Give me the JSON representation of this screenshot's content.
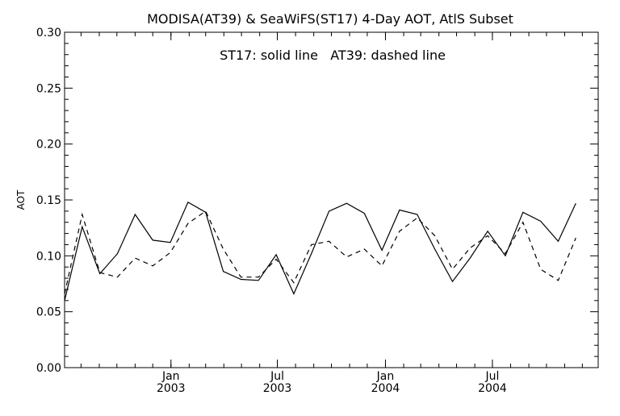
{
  "colors": {
    "background": "#ffffff",
    "foreground": "#000000"
  },
  "chart_data": {
    "type": "line",
    "title": "MODISA(AT39) & SeaWiFS(ST17) 4-Day AOT, AtlS Subset",
    "annotation": "ST17: solid line   AT39: dashed line",
    "xlabel": "",
    "ylabel": "AOT",
    "xlim": [
      "2002-07-04",
      "2004-12-28"
    ],
    "ylim": [
      0.0,
      0.3
    ],
    "grid": false,
    "legend": "none",
    "x_ticks": [
      {
        "month": "Jan",
        "year": "2003",
        "date": "2003-01-01"
      },
      {
        "month": "Jul",
        "year": "2003",
        "date": "2003-07-01"
      },
      {
        "month": "Jan",
        "year": "2004",
        "date": "2004-01-01"
      },
      {
        "month": "Jul",
        "year": "2004",
        "date": "2004-07-01"
      }
    ],
    "y_ticks": [
      "0.00",
      "0.05",
      "0.10",
      "0.15",
      "0.20",
      "0.25",
      "0.30"
    ],
    "series": [
      {
        "style": "solid",
        "points": [
          [
            "2002-07-04",
            0.06
          ],
          [
            "2002-08-03",
            0.126
          ],
          [
            "2002-09-02",
            0.084
          ],
          [
            "2002-10-02",
            0.102
          ],
          [
            "2002-11-01",
            0.137
          ],
          [
            "2002-12-01",
            0.114
          ],
          [
            "2002-12-31",
            0.112
          ],
          [
            "2003-01-30",
            0.148
          ],
          [
            "2003-03-01",
            0.139
          ],
          [
            "2003-03-31",
            0.086
          ],
          [
            "2003-04-30",
            0.079
          ],
          [
            "2003-05-30",
            0.078
          ],
          [
            "2003-06-29",
            0.101
          ],
          [
            "2003-07-29",
            0.066
          ],
          [
            "2003-08-28",
            0.102
          ],
          [
            "2003-09-27",
            0.14
          ],
          [
            "2003-10-27",
            0.147
          ],
          [
            "2003-11-26",
            0.138
          ],
          [
            "2003-12-26",
            0.105
          ],
          [
            "2004-01-25",
            0.141
          ],
          [
            "2004-02-24",
            0.137
          ],
          [
            "2004-03-25",
            0.106
          ],
          [
            "2004-04-24",
            0.077
          ],
          [
            "2004-05-24",
            0.098
          ],
          [
            "2004-06-23",
            0.122
          ],
          [
            "2004-07-23",
            0.1
          ],
          [
            "2004-08-22",
            0.139
          ],
          [
            "2004-09-21",
            0.131
          ],
          [
            "2004-10-21",
            0.113
          ],
          [
            "2004-11-20",
            0.147
          ]
        ]
      },
      {
        "style": "dashed",
        "points": [
          [
            "2002-07-04",
            0.066
          ],
          [
            "2002-08-03",
            0.137
          ],
          [
            "2002-09-02",
            0.085
          ],
          [
            "2002-10-02",
            0.081
          ],
          [
            "2002-11-01",
            0.098
          ],
          [
            "2002-12-01",
            0.091
          ],
          [
            "2002-12-31",
            0.103
          ],
          [
            "2003-01-30",
            0.129
          ],
          [
            "2003-03-01",
            0.14
          ],
          [
            "2003-03-31",
            0.106
          ],
          [
            "2003-04-30",
            0.081
          ],
          [
            "2003-05-30",
            0.081
          ],
          [
            "2003-06-29",
            0.097
          ],
          [
            "2003-07-29",
            0.076
          ],
          [
            "2003-08-28",
            0.11
          ],
          [
            "2003-09-27",
            0.113
          ],
          [
            "2003-10-27",
            0.099
          ],
          [
            "2003-11-26",
            0.106
          ],
          [
            "2003-12-26",
            0.091
          ],
          [
            "2004-01-25",
            0.122
          ],
          [
            "2004-02-24",
            0.134
          ],
          [
            "2004-03-25",
            0.118
          ],
          [
            "2004-04-24",
            0.088
          ],
          [
            "2004-05-24",
            0.107
          ],
          [
            "2004-06-23",
            0.118
          ],
          [
            "2004-07-23",
            0.102
          ],
          [
            "2004-08-22",
            0.13
          ],
          [
            "2004-09-21",
            0.088
          ],
          [
            "2004-10-21",
            0.078
          ],
          [
            "2004-11-20",
            0.116
          ]
        ]
      }
    ]
  }
}
